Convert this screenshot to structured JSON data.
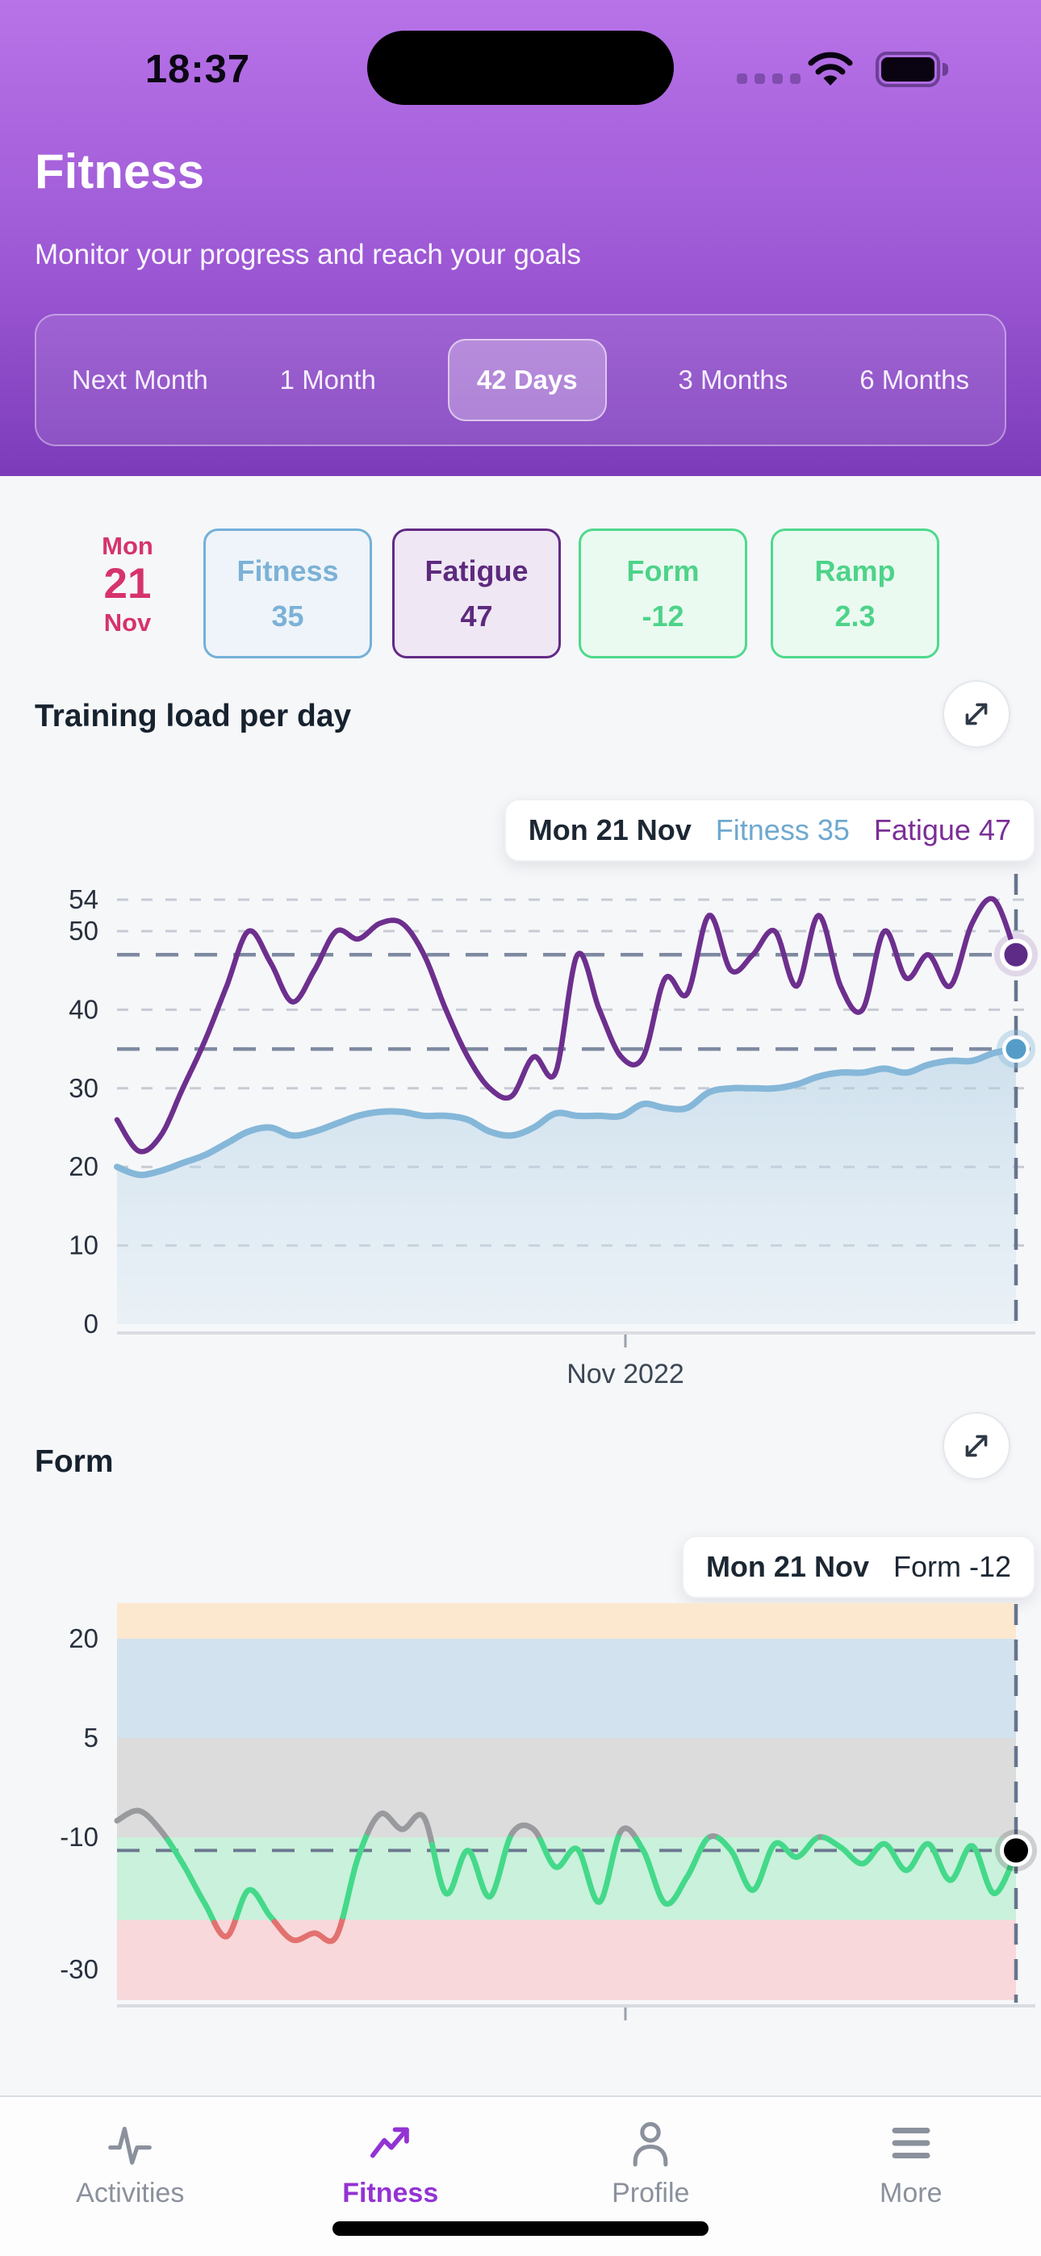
{
  "status_bar": {
    "time": "18:37"
  },
  "header": {
    "title": "Fitness",
    "subtitle": "Monitor your progress and reach your goals"
  },
  "range_tabs": {
    "items": [
      {
        "label": "Next Month",
        "selected": false
      },
      {
        "label": "1 Month",
        "selected": false
      },
      {
        "label": "42 Days",
        "selected": true
      },
      {
        "label": "3 Months",
        "selected": false
      },
      {
        "label": "6 Months",
        "selected": false
      }
    ]
  },
  "summary": {
    "date": {
      "weekday": "Mon",
      "day": "21",
      "month": "Nov"
    },
    "cards": [
      {
        "label": "Fitness",
        "value": "35",
        "theme": "blue"
      },
      {
        "label": "Fatigue",
        "value": "47",
        "theme": "purple"
      },
      {
        "label": "Form",
        "value": "-12",
        "theme": "green"
      },
      {
        "label": "Ramp",
        "value": "2.3",
        "theme": "green"
      }
    ]
  },
  "training_section": {
    "title": "Training load per day",
    "tooltip": {
      "date": "Mon 21 Nov",
      "fitness": "Fitness 35",
      "fatigue": "Fatigue 47"
    },
    "x_axis_label": "Nov 2022"
  },
  "form_section": {
    "title": "Form",
    "tooltip": {
      "date": "Mon 21 Nov",
      "form": "Form -12"
    }
  },
  "tab_bar": {
    "items": [
      {
        "label": "Activities",
        "icon": "pulse-icon",
        "active": false
      },
      {
        "label": "Fitness",
        "icon": "trend-up-icon",
        "active": true
      },
      {
        "label": "Profile",
        "icon": "person-icon",
        "active": false
      },
      {
        "label": "More",
        "icon": "menu-icon",
        "active": false
      }
    ]
  },
  "chart_data": [
    {
      "type": "line",
      "title": "Training load per day",
      "x": "last 42 days ending Mon 21 Nov 2022",
      "x_tick_labels": [
        "Nov 2022"
      ],
      "ylim": [
        0,
        57
      ],
      "yticks": [
        0,
        10,
        20,
        30,
        40,
        50,
        54
      ],
      "grid": "dotted horizontal",
      "reference_lines": [
        47,
        35
      ],
      "today_marker": true,
      "series": [
        {
          "name": "Fatigue",
          "color": "#6d2f8e",
          "end_value": 47,
          "values": [
            26,
            22,
            24,
            30,
            36,
            43,
            50,
            46,
            41,
            45,
            50,
            49,
            51,
            51,
            47,
            40,
            34,
            30,
            29,
            34,
            32,
            47,
            40,
            34,
            34,
            44,
            42,
            52,
            45,
            47,
            50,
            43,
            52,
            43,
            40,
            50,
            44,
            47,
            43,
            51,
            54,
            47
          ]
        },
        {
          "name": "Fitness",
          "color": "#85b7d9",
          "area": true,
          "end_value": 35,
          "values": [
            20,
            19,
            19.5,
            20.5,
            21.5,
            23,
            24.5,
            25,
            24,
            24.5,
            25.5,
            26.5,
            27,
            27,
            26.5,
            26.5,
            26,
            24.5,
            24,
            25,
            26.8,
            26.5,
            26.5,
            26.5,
            28,
            27.5,
            27.5,
            29.5,
            30,
            30,
            30,
            30.5,
            31.5,
            32,
            32,
            32.5,
            32,
            33,
            33.5,
            33.5,
            34.5,
            35
          ]
        }
      ]
    },
    {
      "type": "line",
      "title": "Form",
      "x": "last 42 days ending Mon 21 Nov 2022",
      "ylim": [
        -35,
        25
      ],
      "yticks": [
        20,
        5,
        -10,
        -30
      ],
      "reference_lines": [
        -12
      ],
      "today_marker": true,
      "zones": [
        {
          "name": "transition",
          "from": 20,
          "to": 25.4,
          "color": "#fce8cf"
        },
        {
          "name": "fresh",
          "from": 5,
          "to": 20,
          "color": "#d2e2ee"
        },
        {
          "name": "grey-zone",
          "from": -10,
          "to": 5,
          "color": "#dcdcdc"
        },
        {
          "name": "optimal",
          "from": -22.5,
          "to": -10,
          "color": "#c9f1db"
        },
        {
          "name": "high-risk",
          "from": -34.6,
          "to": -22.5,
          "color": "#f8d8da"
        }
      ],
      "line_zone_colors": {
        "grey-zone": "#989a9d",
        "optimal": "#44d98a",
        "high-risk": "#e2716f"
      },
      "series": [
        {
          "name": "Form",
          "end_value": -12,
          "values": [
            -7.5,
            -6,
            -9,
            -14,
            -20,
            -25,
            -18,
            -22,
            -25.5,
            -24.5,
            -25,
            -13,
            -6.5,
            -8.8,
            -7,
            -18.5,
            -12,
            -19,
            -9.5,
            -8.8,
            -14.5,
            -11.8,
            -19.8,
            -9,
            -12,
            -20,
            -16,
            -10,
            -12,
            -18,
            -11,
            -13,
            -10,
            -11.5,
            -14,
            -11,
            -15,
            -11,
            -16.5,
            -11.3,
            -18.5,
            -12.4
          ]
        }
      ]
    }
  ]
}
